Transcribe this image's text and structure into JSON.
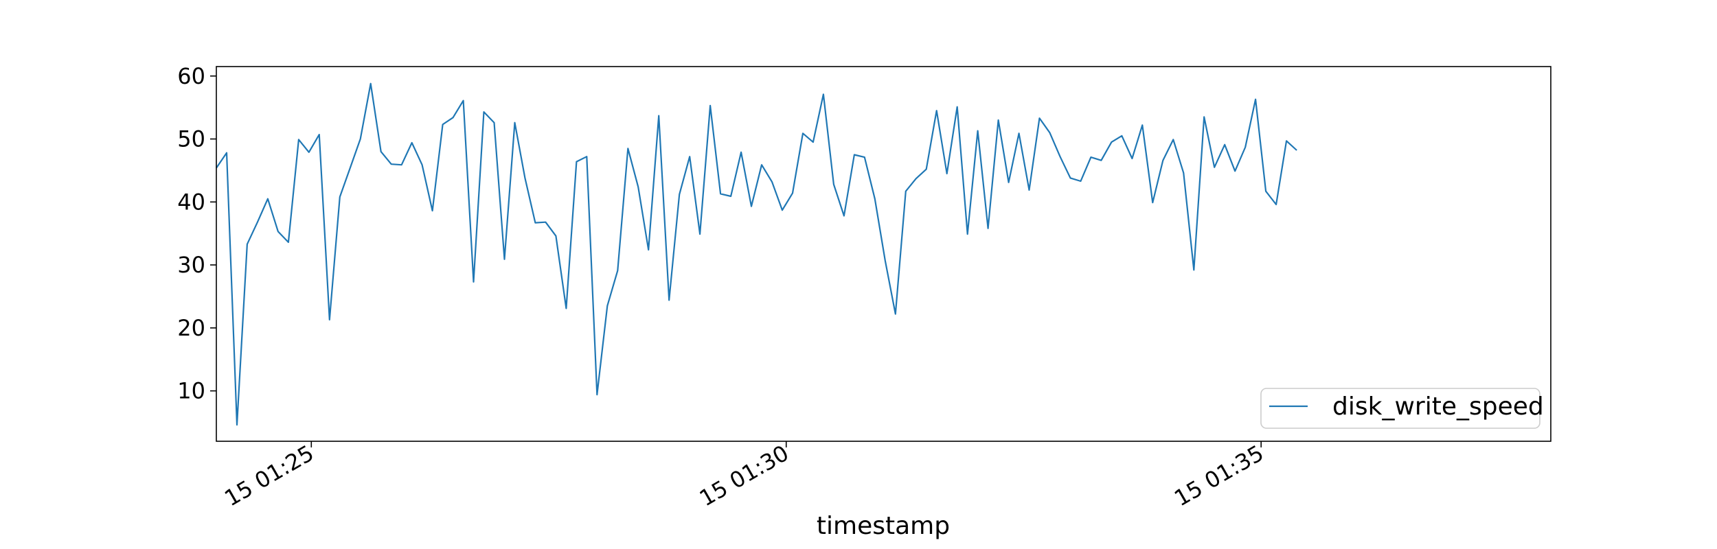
{
  "chart_data": {
    "type": "line",
    "xlabel": "timestamp",
    "ylabel": "",
    "title": "",
    "legend": {
      "placement": "lower-right",
      "entries": [
        "disk_write_speed"
      ]
    },
    "x_start": "15 01:24:00",
    "x_end": "15 01:38:03",
    "x_interval_seconds": 6.5,
    "xlim": [
      "15 01:24:00",
      "15 01:38:03"
    ],
    "ylim": [
      2,
      61.5
    ],
    "xticks": [
      {
        "at": "15 01:25",
        "label": "15 01:25"
      },
      {
        "at": "15 01:30",
        "label": "15 01:30"
      },
      {
        "at": "15 01:35",
        "label": "15 01:35"
      }
    ],
    "yticks": [
      10,
      20,
      30,
      40,
      50,
      60
    ],
    "grid": false,
    "series": [
      {
        "name": "disk_write_speed",
        "color": "#1f77b4",
        "values": [
          45.4,
          47.8,
          4.6,
          33.3,
          36.8,
          40.5,
          35.3,
          33.6,
          49.9,
          47.9,
          50.7,
          21.3,
          40.8,
          45.4,
          50.0,
          58.8,
          48.0,
          46.0,
          45.9,
          49.4,
          45.9,
          38.6,
          52.3,
          53.4,
          56.1,
          27.3,
          54.3,
          52.6,
          30.9,
          52.6,
          43.8,
          36.7,
          36.8,
          34.6,
          23.1,
          46.4,
          47.2,
          9.4,
          23.5,
          29.1,
          48.5,
          42.4,
          32.4,
          53.7,
          24.4,
          41.2,
          47.2,
          34.9,
          55.3,
          41.3,
          40.9,
          47.9,
          39.3,
          45.9,
          43.2,
          38.7,
          41.4,
          50.9,
          49.5,
          57.1,
          42.8,
          37.8,
          47.5,
          47.1,
          40.5,
          30.7,
          22.2,
          41.7,
          43.7,
          45.2,
          54.5,
          44.5,
          55.1,
          34.9,
          51.3,
          35.8,
          53.0,
          43.1,
          50.9,
          41.9,
          53.3,
          51.0,
          47.2,
          43.8,
          43.3,
          47.1,
          46.6,
          49.5,
          50.5,
          46.9,
          52.2,
          39.9,
          46.6,
          49.9,
          44.6,
          29.2,
          53.5,
          45.5,
          49.1,
          44.9,
          48.7,
          56.3,
          41.7,
          39.6,
          49.7,
          48.2
        ]
      }
    ]
  }
}
